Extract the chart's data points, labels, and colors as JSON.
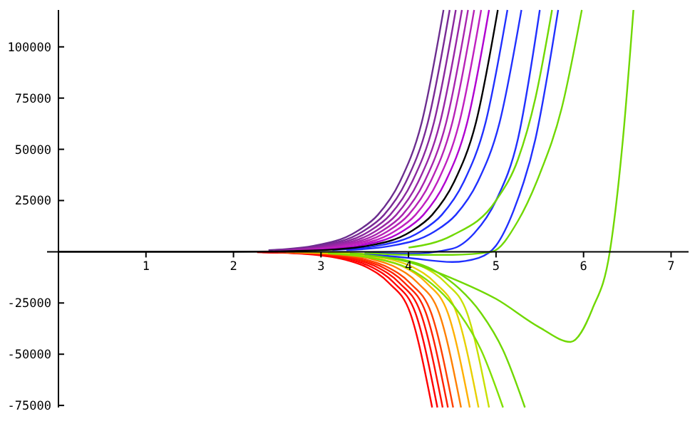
{
  "chart_data": {
    "type": "line",
    "xlim": [
      0,
      7.2
    ],
    "ylim": [
      -76000,
      118000
    ],
    "xticks": [
      1,
      2,
      3,
      4,
      5,
      6,
      7
    ],
    "yticks": [
      -75000,
      -50000,
      -25000,
      25000,
      50000,
      75000,
      100000
    ],
    "grid": false,
    "series": [
      {
        "color": "#ff0000",
        "x": [
          2.27,
          2.77,
          3.27,
          3.52,
          3.77,
          4.02,
          4.27
        ],
        "values": [
          -200,
          -900,
          -3800,
          -7500,
          -15000,
          -30000,
          -76000
        ]
      },
      {
        "color": "#ff0000",
        "x": [
          2.33,
          2.83,
          3.33,
          3.58,
          3.83,
          4.08,
          4.33
        ],
        "values": [
          -200,
          -900,
          -3800,
          -7500,
          -15000,
          -30000,
          -76000
        ]
      },
      {
        "color": "#ff1000",
        "x": [
          2.39,
          2.89,
          3.39,
          3.64,
          3.89,
          4.14,
          4.39
        ],
        "values": [
          -200,
          -900,
          -3800,
          -7500,
          -15000,
          -30000,
          -76000
        ]
      },
      {
        "color": "#ff2000",
        "x": [
          2.45,
          2.95,
          3.45,
          3.7,
          3.95,
          4.2,
          4.45
        ],
        "values": [
          -200,
          -900,
          -3800,
          -7500,
          -15000,
          -30000,
          -76000
        ]
      },
      {
        "color": "#ff4000",
        "x": [
          2.51,
          3.01,
          3.51,
          3.76,
          4.01,
          4.26,
          4.51
        ],
        "values": [
          -200,
          -900,
          -3800,
          -7500,
          -15000,
          -30000,
          -76000
        ]
      },
      {
        "color": "#ff8000",
        "x": [
          2.6,
          3.1,
          3.6,
          3.85,
          4.1,
          4.35,
          4.6
        ],
        "values": [
          -200,
          -900,
          -3800,
          -7500,
          -15000,
          -30000,
          -76000
        ]
      },
      {
        "color": "#ffb000",
        "x": [
          2.7,
          3.2,
          3.7,
          3.95,
          4.2,
          4.45,
          4.7
        ],
        "values": [
          -200,
          -900,
          -3800,
          -7500,
          -15000,
          -30000,
          -76000
        ]
      },
      {
        "color": "#e8d000",
        "x": [
          2.8,
          3.3,
          3.8,
          4.05,
          4.3,
          4.55,
          4.8
        ],
        "values": [
          -200,
          -900,
          -3800,
          -7500,
          -15000,
          -30000,
          -76000
        ]
      },
      {
        "color": "#c8e000",
        "x": [
          2.92,
          3.42,
          3.92,
          4.17,
          4.42,
          4.67,
          4.92
        ],
        "values": [
          -200,
          -900,
          -3800,
          -7500,
          -15000,
          -30000,
          -76000
        ]
      },
      {
        "color": "#80e000",
        "x": [
          3.08,
          3.58,
          4.08,
          4.33,
          4.58,
          4.83,
          5.08
        ],
        "values": [
          -800,
          -3000,
          -10000,
          -18000,
          -30000,
          -48000,
          -76000
        ]
      },
      {
        "color": "#70d800",
        "x": [
          3.33,
          3.83,
          4.33,
          4.58,
          4.83,
          5.08,
          5.33
        ],
        "values": [
          -800,
          -3000,
          -10000,
          -18000,
          -30000,
          -48000,
          -76000
        ]
      },
      {
        "color": "#6b2d8f",
        "x": [
          2.4,
          2.9,
          3.4,
          3.65,
          3.9,
          4.15,
          4.4
        ],
        "values": [
          800,
          2800,
          9700,
          18000,
          34000,
          63000,
          118000
        ]
      },
      {
        "color": "#7a2a96",
        "x": [
          2.47,
          2.97,
          3.47,
          3.72,
          3.97,
          4.22,
          4.47
        ],
        "values": [
          800,
          2800,
          9700,
          18000,
          34000,
          63000,
          118000
        ]
      },
      {
        "color": "#8a289e",
        "x": [
          2.54,
          3.04,
          3.54,
          3.79,
          4.04,
          4.29,
          4.54
        ],
        "values": [
          800,
          2800,
          9700,
          18000,
          34000,
          63000,
          118000
        ]
      },
      {
        "color": "#9926a6",
        "x": [
          2.61,
          3.11,
          3.61,
          3.86,
          4.11,
          4.36,
          4.61
        ],
        "values": [
          800,
          2800,
          9700,
          18000,
          34000,
          63000,
          118000
        ]
      },
      {
        "color": "#a824ae",
        "x": [
          2.68,
          3.18,
          3.68,
          3.93,
          4.18,
          4.43,
          4.68
        ],
        "values": [
          800,
          2800,
          9700,
          18000,
          34000,
          63000,
          118000
        ]
      },
      {
        "color": "#b722b6",
        "x": [
          2.75,
          3.25,
          3.75,
          4,
          4.25,
          4.5,
          4.75
        ],
        "values": [
          800,
          2800,
          9700,
          18000,
          34000,
          63000,
          118000
        ]
      },
      {
        "color": "#c020c0",
        "x": [
          2.83,
          3.33,
          3.83,
          4.08,
          4.33,
          4.58,
          4.83
        ],
        "values": [
          800,
          2800,
          9700,
          18000,
          34000,
          63000,
          118000
        ]
      },
      {
        "color": "#b000d0",
        "x": [
          2.92,
          3.42,
          3.92,
          4.17,
          4.42,
          4.67,
          4.92
        ],
        "values": [
          800,
          2800,
          9700,
          18000,
          34000,
          63000,
          118000
        ]
      },
      {
        "color": "#2030ff",
        "x": [
          3.13,
          3.63,
          4.13,
          4.38,
          4.63,
          4.88,
          5.13
        ],
        "values": [
          800,
          2800,
          9700,
          18000,
          34000,
          63000,
          118000
        ]
      },
      {
        "color": "#2030ff",
        "x": [
          3.29,
          3.79,
          4.29,
          4.54,
          4.79,
          5.04,
          5.29
        ],
        "values": [
          800,
          2800,
          9700,
          18000,
          34000,
          63000,
          118000
        ]
      },
      {
        "color": "#2030ff",
        "x": [
          3.5,
          4,
          4.5,
          4.75,
          5,
          5.25,
          5.5
        ],
        "values": [
          -300,
          -1000,
          1500,
          9000,
          25000,
          55000,
          118000
        ]
      },
      {
        "color": "#2030ff",
        "x": [
          3.5,
          4,
          4.5,
          4.8,
          5,
          5.2,
          5.45,
          5.71
        ],
        "values": [
          -1000,
          -3000,
          -5000,
          -3000,
          3000,
          20000,
          55000,
          118000
        ]
      },
      {
        "color": "#70d800",
        "x": [
          4,
          4.5,
          5,
          5.25,
          5.45,
          5.64
        ],
        "values": [
          2000,
          8000,
          25000,
          45000,
          75000,
          118000
        ]
      },
      {
        "color": "#70d800",
        "x": [
          3.5,
          4,
          4.5,
          4.95,
          5.25,
          5.5,
          5.75,
          5.98
        ],
        "values": [
          -500,
          -1500,
          -1500,
          0,
          15000,
          38000,
          70000,
          118000
        ]
      },
      {
        "color": "#70d800",
        "x": [
          3.5,
          4,
          4.5,
          5,
          5.5,
          5.85,
          6.1,
          6.3,
          6.45,
          6.57
        ],
        "values": [
          -1500,
          -5000,
          -13000,
          -23000,
          -37000,
          -44000,
          -28000,
          0,
          55000,
          118000
        ]
      },
      {
        "color": "#000000",
        "x": [
          0,
          2.02,
          3.02,
          3.52,
          4.02,
          4.27,
          4.52,
          4.77,
          5.02
        ],
        "values": [
          0,
          0,
          800,
          2800,
          9700,
          18000,
          34000,
          63000,
          118000
        ]
      }
    ]
  }
}
